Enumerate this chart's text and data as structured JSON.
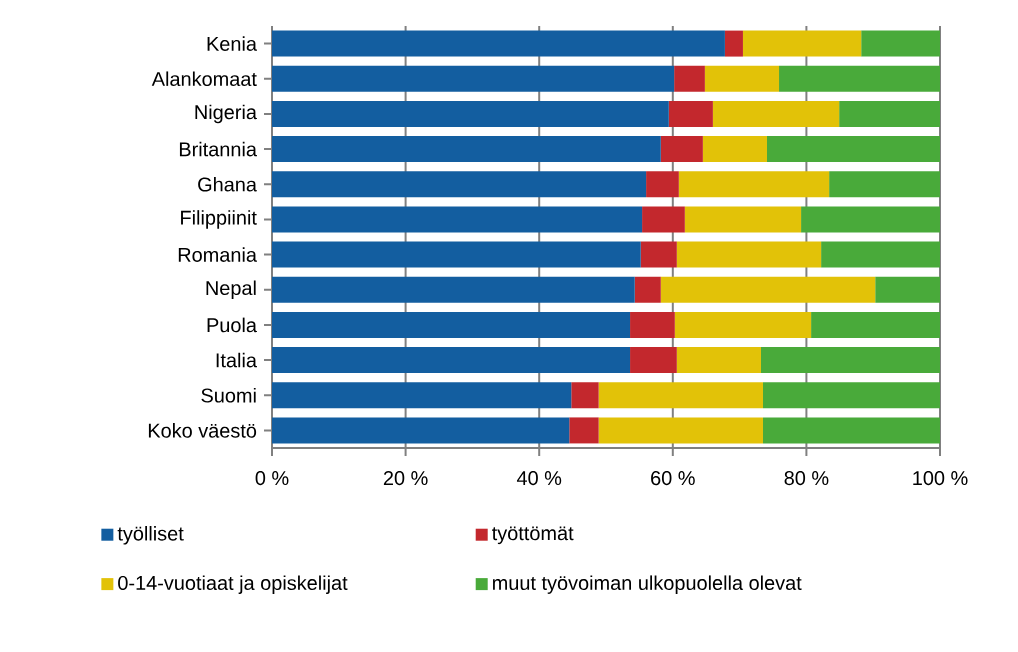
{
  "chart_data": {
    "type": "bar",
    "orientation": "horizontal",
    "stacked": true,
    "categories": [
      "Kenia",
      "Alankomaat",
      "Nigeria",
      "Britannia",
      "Ghana",
      "Filippiinit",
      "Romania",
      "Nepal",
      "Puola",
      "Italia",
      "Suomi",
      "Koko väestö"
    ],
    "series": [
      {
        "name": "työlliset",
        "color": "#135ea0",
        "values": [
          67.8,
          60.2,
          59.4,
          58.2,
          56.0,
          55.4,
          55.2,
          54.3,
          53.6,
          53.6,
          44.8,
          44.5
        ]
      },
      {
        "name": "työttömät",
        "color": "#c3282d",
        "values": [
          2.7,
          4.6,
          6.6,
          6.3,
          4.9,
          6.4,
          5.4,
          3.9,
          6.7,
          7.0,
          4.1,
          4.4
        ]
      },
      {
        "name": "0-14-vuotiaat ja opiskelijat",
        "color": "#e2c208",
        "values": [
          17.7,
          11.1,
          18.9,
          9.6,
          22.5,
          17.4,
          21.6,
          32.1,
          20.4,
          12.6,
          24.6,
          24.6
        ]
      },
      {
        "name": "muut työvoiman ulkopuolella olevat",
        "color": "#49aa3a",
        "values": [
          11.8,
          24.1,
          15.1,
          25.9,
          16.6,
          20.8,
          17.8,
          9.7,
          19.3,
          26.8,
          26.5,
          26.5
        ]
      }
    ],
    "xlim": [
      0,
      100
    ],
    "xticks": [
      {
        "value": 0,
        "label": "0 %"
      },
      {
        "value": 20,
        "label": "20 %"
      },
      {
        "value": 40,
        "label": "40 %"
      },
      {
        "value": 60,
        "label": "60 %"
      },
      {
        "value": 80,
        "label": "80 %"
      },
      {
        "value": 100,
        "label": "100 %"
      }
    ],
    "grid": "x",
    "legend": "bottom"
  }
}
